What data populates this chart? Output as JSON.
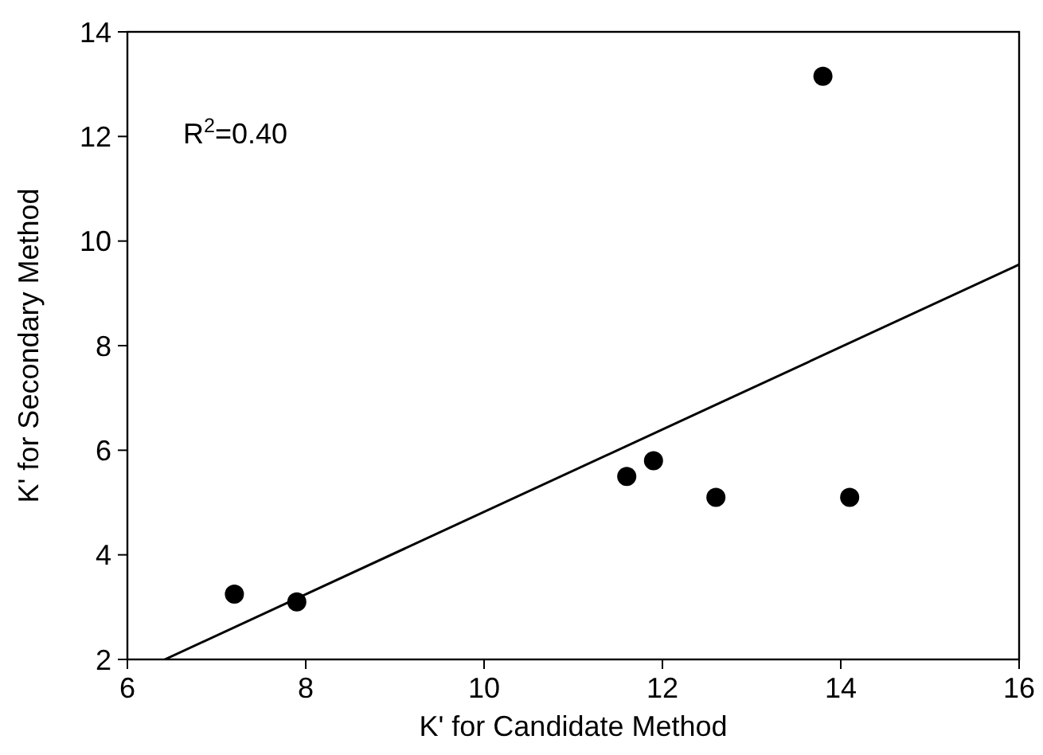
{
  "chart_data": {
    "type": "scatter",
    "xlabel": "K' for Candidate Method",
    "ylabel": "K' for Secondary Method",
    "annotations": [
      "R$^{2}$=0.40"
    ],
    "xlim": [
      6,
      16
    ],
    "ylim": [
      2,
      14
    ],
    "xticks": [
      6,
      8,
      10,
      12,
      14,
      16
    ],
    "yticks": [
      2,
      4,
      6,
      8,
      10,
      12,
      14
    ],
    "grid": false,
    "marker": "circle",
    "series": [
      {
        "color": "#000000",
        "x": [
          7.2,
          7.9,
          11.6,
          11.9,
          12.6,
          13.8,
          14.1
        ],
        "values": [
          3.25,
          3.1,
          5.5,
          5.8,
          5.1,
          13.15,
          5.1
        ]
      },
      {
        "type": "line",
        "color": "#000000",
        "line_style": "solid",
        "marker": "none",
        "x": [
          6.42,
          16
        ],
        "values": [
          2,
          9.55
        ]
      }
    ]
  }
}
